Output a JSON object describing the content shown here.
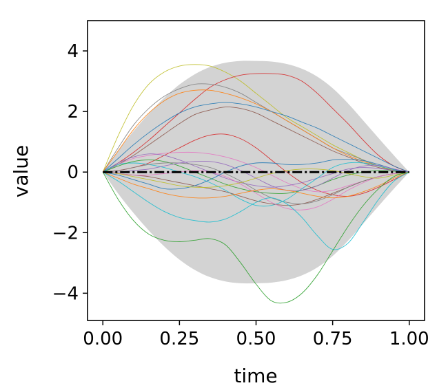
{
  "chart_data": {
    "type": "line",
    "title": "",
    "xlabel": "time",
    "ylabel": "value",
    "xlim": [
      -0.05,
      1.05
    ],
    "ylim": [
      -4.9,
      5.0
    ],
    "xticks": [
      0.0,
      0.25,
      0.5,
      0.75,
      1.0
    ],
    "xtick_labels": [
      "0.00",
      "0.25",
      "0.50",
      "0.75",
      "1.00"
    ],
    "yticks": [
      -4,
      -2,
      0,
      2,
      4
    ],
    "ytick_labels": [
      "−4",
      "−2",
      "0",
      "2",
      "4"
    ],
    "grid": false,
    "legend": "none",
    "x": [
      0,
      0.05,
      0.1,
      0.15,
      0.2,
      0.25,
      0.3,
      0.35,
      0.4,
      0.45,
      0.5,
      0.55,
      0.6,
      0.65,
      0.7,
      0.75,
      0.8,
      0.85,
      0.9,
      0.95,
      1.0
    ],
    "band": {
      "color": "#d3d3d3",
      "upper": [
        0,
        0.71,
        1.35,
        1.93,
        2.45,
        2.89,
        3.23,
        3.47,
        3.61,
        3.67,
        3.67,
        3.65,
        3.57,
        3.41,
        3.15,
        2.77,
        2.27,
        1.7,
        1.12,
        0.55,
        0
      ],
      "lower": [
        0,
        -0.71,
        -1.35,
        -1.93,
        -2.45,
        -2.89,
        -3.23,
        -3.47,
        -3.61,
        -3.67,
        -3.67,
        -3.65,
        -3.57,
        -3.41,
        -3.15,
        -2.77,
        -2.27,
        -1.7,
        -1.12,
        -0.55,
        0
      ]
    },
    "mean_line": {
      "color": "#000000",
      "style": "dash-dot",
      "values": [
        0,
        0,
        0,
        0,
        0,
        0,
        0,
        0,
        0,
        0,
        0,
        0,
        0,
        0,
        0,
        0,
        0,
        0,
        0,
        0,
        0
      ]
    },
    "series": [
      {
        "color": "#bcbd22",
        "values": [
          0,
          1.2,
          2.2,
          2.9,
          3.3,
          3.5,
          3.55,
          3.5,
          3.3,
          3.0,
          2.6,
          2.2,
          1.8,
          1.5,
          1.2,
          0.9,
          0.65,
          0.4,
          0.2,
          0.05,
          0
        ]
      },
      {
        "color": "#d62728",
        "values": [
          0,
          0.3,
          0.65,
          1.05,
          1.5,
          1.95,
          2.4,
          2.8,
          3.05,
          3.2,
          3.25,
          3.25,
          3.2,
          3.0,
          2.6,
          2.1,
          1.6,
          1.05,
          0.55,
          0.2,
          0
        ]
      },
      {
        "color": "#7f7f7f",
        "values": [
          0,
          0.8,
          1.55,
          2.1,
          2.5,
          2.75,
          2.9,
          2.9,
          2.8,
          2.6,
          2.3,
          2.0,
          1.7,
          1.4,
          1.1,
          0.8,
          0.6,
          0.4,
          0.2,
          0.08,
          0
        ]
      },
      {
        "color": "#ff7f0e",
        "values": [
          0,
          0.7,
          1.4,
          1.95,
          2.35,
          2.6,
          2.7,
          2.7,
          2.6,
          2.45,
          2.25,
          2.0,
          1.7,
          1.4,
          1.1,
          0.8,
          0.55,
          0.35,
          0.2,
          0.08,
          0
        ]
      },
      {
        "color": "#1f77b4",
        "values": [
          0,
          0.45,
          0.9,
          1.3,
          1.65,
          1.95,
          2.15,
          2.25,
          2.3,
          2.25,
          2.15,
          2.0,
          1.85,
          1.65,
          1.45,
          1.2,
          0.95,
          0.7,
          0.45,
          0.2,
          0
        ]
      },
      {
        "color": "#8c564b",
        "values": [
          0,
          0.25,
          0.55,
          0.9,
          1.25,
          1.6,
          1.9,
          2.05,
          2.15,
          2.1,
          1.95,
          1.7,
          1.45,
          1.2,
          0.95,
          0.7,
          0.5,
          0.3,
          0.15,
          0.05,
          0
        ]
      },
      {
        "color": "#d62728",
        "values": [
          0,
          0.05,
          0.15,
          0.3,
          0.55,
          0.8,
          1.05,
          1.22,
          1.25,
          1.1,
          0.8,
          0.4,
          0.0,
          -0.35,
          -0.6,
          -0.75,
          -0.8,
          -0.7,
          -0.5,
          -0.25,
          0
        ]
      },
      {
        "color": "#e377c2",
        "values": [
          0,
          0.25,
          0.45,
          0.55,
          0.62,
          0.65,
          0.65,
          0.6,
          0.5,
          0.35,
          0.15,
          -0.1,
          -0.35,
          -0.55,
          -0.65,
          -0.6,
          -0.45,
          -0.3,
          -0.15,
          -0.05,
          0
        ]
      },
      {
        "color": "#9467bd",
        "values": [
          0,
          0.3,
          0.5,
          0.6,
          0.55,
          0.4,
          0.2,
          0.0,
          -0.2,
          -0.35,
          -0.45,
          -0.5,
          -0.45,
          -0.35,
          -0.2,
          -0.05,
          0.1,
          0.15,
          0.12,
          0.05,
          0
        ]
      },
      {
        "color": "#17becf",
        "values": [
          0,
          0.25,
          0.3,
          0.25,
          0.15,
          0.0,
          -0.15,
          -0.35,
          -0.6,
          -0.9,
          -1.1,
          -1.1,
          -0.9,
          -0.55,
          -0.2,
          0.15,
          0.3,
          0.3,
          0.2,
          0.08,
          0
        ]
      },
      {
        "color": "#2ca02c",
        "values": [
          0,
          0.2,
          0.35,
          0.4,
          0.35,
          0.2,
          0.0,
          -0.2,
          -0.4,
          -0.55,
          -0.65,
          -0.7,
          -0.7,
          -0.6,
          -0.45,
          -0.25,
          -0.1,
          0.0,
          0.05,
          0.03,
          0
        ]
      },
      {
        "color": "#8c564b",
        "values": [
          0,
          -0.05,
          -0.1,
          -0.15,
          -0.25,
          -0.35,
          -0.45,
          -0.55,
          -0.65,
          -0.8,
          -0.95,
          -1.05,
          -1.1,
          -1.05,
          -0.9,
          -0.7,
          -0.5,
          -0.3,
          -0.15,
          -0.05,
          0
        ]
      },
      {
        "color": "#7f7f7f",
        "values": [
          0,
          0.05,
          0.15,
          0.25,
          0.3,
          0.3,
          0.25,
          0.15,
          -0.05,
          -0.3,
          -0.6,
          -0.85,
          -1.0,
          -1.05,
          -0.95,
          -0.75,
          -0.5,
          -0.3,
          -0.15,
          -0.05,
          0
        ]
      },
      {
        "color": "#e377c2",
        "values": [
          0,
          -0.05,
          -0.1,
          -0.1,
          -0.05,
          0.0,
          0.05,
          0.0,
          -0.15,
          -0.4,
          -0.7,
          -1.0,
          -1.2,
          -1.25,
          -1.15,
          -0.9,
          -0.6,
          -0.35,
          -0.15,
          -0.05,
          0
        ]
      },
      {
        "color": "#1f77b4",
        "values": [
          0,
          -0.1,
          -0.25,
          -0.4,
          -0.55,
          -0.55,
          -0.45,
          -0.25,
          0.0,
          0.2,
          0.3,
          0.3,
          0.25,
          0.25,
          0.3,
          0.4,
          0.42,
          0.38,
          0.25,
          0.1,
          0
        ]
      },
      {
        "color": "#9467bd",
        "values": [
          0,
          0.0,
          0.05,
          0.1,
          0.2,
          0.3,
          0.35,
          0.35,
          0.25,
          0.05,
          -0.2,
          -0.45,
          -0.6,
          -0.6,
          -0.45,
          -0.2,
          0.05,
          0.2,
          0.22,
          0.1,
          0
        ]
      },
      {
        "color": "#ff7f0e",
        "values": [
          0,
          -0.2,
          -0.4,
          -0.55,
          -0.7,
          -0.8,
          -0.85,
          -0.85,
          -0.8,
          -0.7,
          -0.6,
          -0.55,
          -0.6,
          -0.7,
          -0.8,
          -0.85,
          -0.8,
          -0.65,
          -0.45,
          -0.2,
          0
        ]
      },
      {
        "color": "#bcbd22",
        "values": [
          0,
          -0.05,
          -0.15,
          -0.25,
          -0.35,
          -0.45,
          -0.5,
          -0.5,
          -0.45,
          -0.35,
          -0.2,
          -0.05,
          0.05,
          0.1,
          0.1,
          0.05,
          -0.05,
          -0.15,
          -0.2,
          -0.1,
          0
        ]
      },
      {
        "color": "#17becf",
        "values": [
          0,
          -0.3,
          -0.65,
          -1.0,
          -1.3,
          -1.5,
          -1.6,
          -1.65,
          -1.55,
          -1.3,
          -1.0,
          -0.85,
          -1.05,
          -1.5,
          -2.1,
          -2.55,
          -2.35,
          -1.65,
          -0.9,
          -0.3,
          0
        ]
      },
      {
        "color": "#2ca02c",
        "values": [
          0,
          -0.9,
          -1.6,
          -2.05,
          -2.25,
          -2.3,
          -2.25,
          -2.2,
          -2.4,
          -3.0,
          -3.7,
          -4.25,
          -4.3,
          -4.0,
          -3.4,
          -2.6,
          -1.8,
          -1.1,
          -0.55,
          -0.15,
          0
        ]
      }
    ]
  }
}
